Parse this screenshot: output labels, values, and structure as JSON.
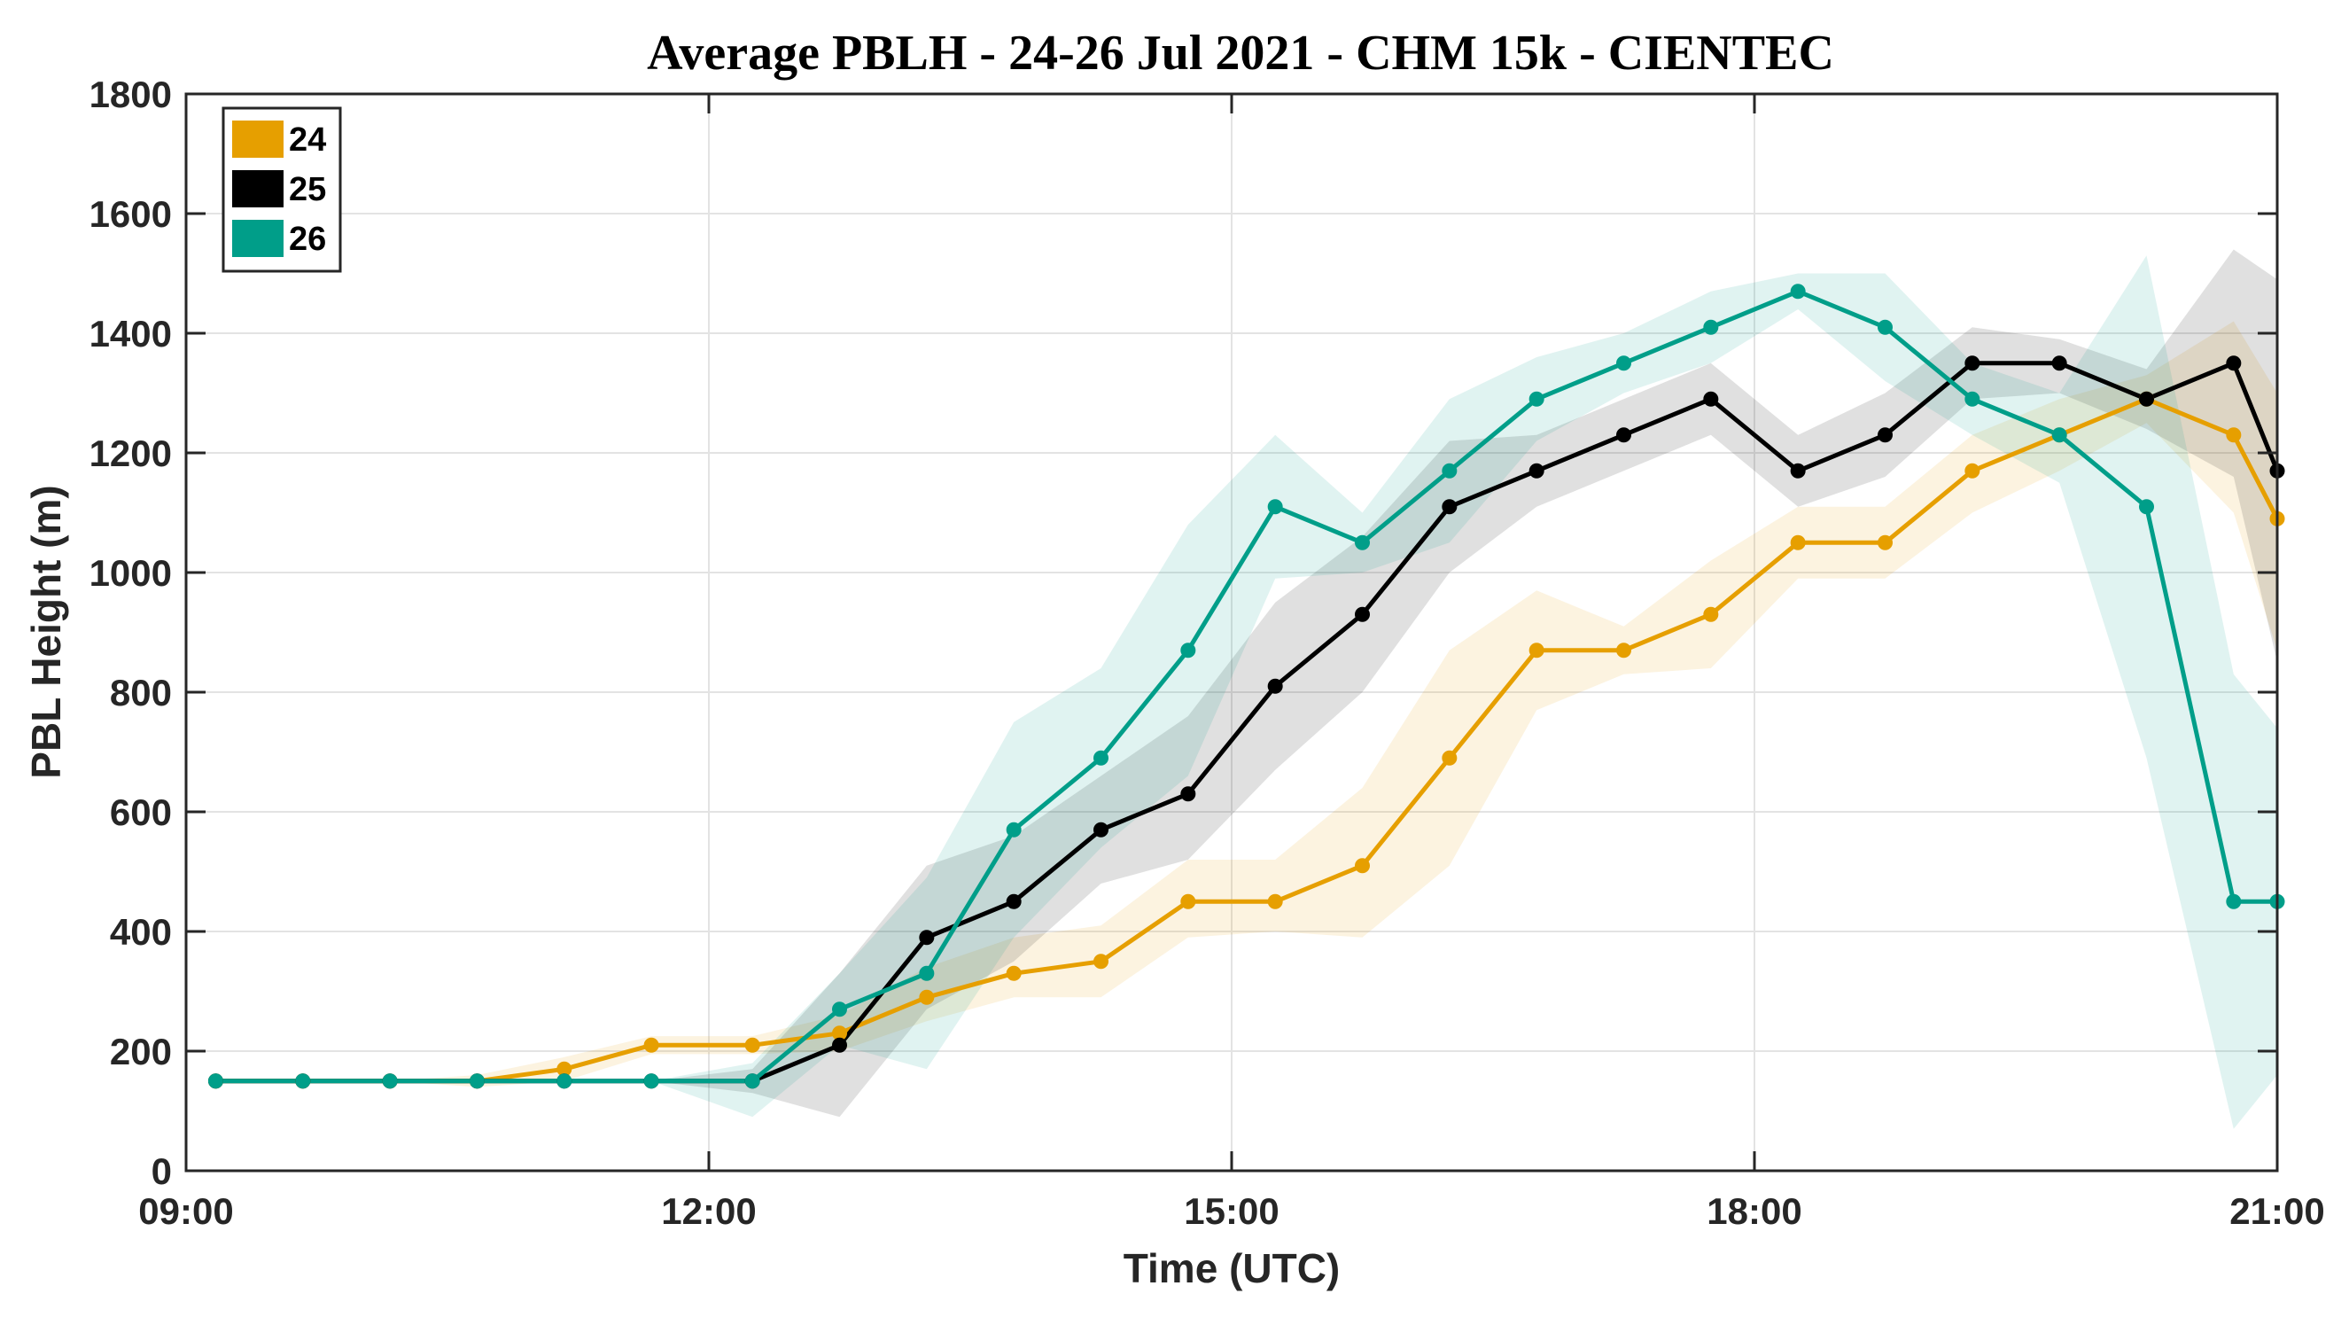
{
  "chart_data": {
    "type": "line",
    "title": "Average PBLH - 24-26 Jul 2021 - CHM 15k - CIENTEC",
    "xlabel": "Time (UTC)",
    "ylabel": "PBL Height (m)",
    "xlim": [
      9,
      21
    ],
    "ylim": [
      0,
      1800
    ],
    "xticks": [
      9,
      12,
      15,
      18,
      21
    ],
    "xtick_labels": [
      "09:00",
      "12:00",
      "15:00",
      "18:00",
      "21:00"
    ],
    "yticks": [
      0,
      200,
      400,
      600,
      800,
      1000,
      1200,
      1400,
      1600,
      1800
    ],
    "ytick_labels": [
      "0",
      "200",
      "400",
      "600",
      "800",
      "1000",
      "1200",
      "1400",
      "1600",
      "1800"
    ],
    "grid": true,
    "legend_position": "top-left",
    "x": [
      9.17,
      9.67,
      10.17,
      10.67,
      11.17,
      11.67,
      12.25,
      12.75,
      13.25,
      13.75,
      14.25,
      14.75,
      15.25,
      15.75,
      16.25,
      16.75,
      17.25,
      17.75,
      18.25,
      18.75,
      19.25,
      19.75,
      20.25,
      20.75,
      21.0
    ],
    "series": [
      {
        "name": "24",
        "color": "#E69F00",
        "values": [
          150,
          150,
          150,
          150,
          170,
          210,
          210,
          230,
          290,
          330,
          350,
          450,
          450,
          510,
          690,
          870,
          870,
          930,
          1050,
          1050,
          1170,
          1230,
          1290,
          1230,
          1090
        ],
        "upper": [
          150,
          150,
          150,
          160,
          190,
          225,
          225,
          260,
          340,
          390,
          410,
          520,
          520,
          640,
          870,
          970,
          910,
          1020,
          1110,
          1110,
          1230,
          1290,
          1330,
          1420,
          1300
        ],
        "lower": [
          150,
          150,
          150,
          140,
          150,
          195,
          195,
          200,
          250,
          290,
          290,
          390,
          400,
          390,
          510,
          770,
          830,
          840,
          990,
          990,
          1100,
          1170,
          1250,
          1100,
          870
        ]
      },
      {
        "name": "25",
        "color": "#000000",
        "values": [
          150,
          150,
          150,
          150,
          150,
          150,
          150,
          210,
          390,
          450,
          570,
          630,
          810,
          930,
          1110,
          1170,
          1230,
          1290,
          1170,
          1230,
          1350,
          1350,
          1290,
          1350,
          1170
        ],
        "upper": [
          150,
          150,
          150,
          150,
          150,
          150,
          170,
          330,
          510,
          560,
          660,
          760,
          950,
          1060,
          1220,
          1230,
          1290,
          1350,
          1230,
          1300,
          1410,
          1390,
          1340,
          1540,
          1490
        ],
        "lower": [
          150,
          150,
          150,
          150,
          150,
          150,
          130,
          90,
          270,
          350,
          480,
          520,
          670,
          800,
          1000,
          1110,
          1170,
          1230,
          1110,
          1160,
          1290,
          1300,
          1240,
          1160,
          850
        ]
      },
      {
        "name": "26",
        "color": "#009E89",
        "values": [
          150,
          150,
          150,
          150,
          150,
          150,
          150,
          270,
          330,
          570,
          690,
          870,
          1110,
          1050,
          1170,
          1290,
          1350,
          1410,
          1470,
          1410,
          1290,
          1230,
          1110,
          450,
          450
        ],
        "upper": [
          150,
          150,
          150,
          150,
          150,
          150,
          180,
          330,
          490,
          750,
          840,
          1080,
          1230,
          1100,
          1290,
          1360,
          1400,
          1470,
          1500,
          1500,
          1350,
          1300,
          1530,
          830,
          740
        ],
        "lower": [
          150,
          150,
          150,
          150,
          150,
          150,
          90,
          210,
          170,
          390,
          540,
          660,
          990,
          1000,
          1050,
          1220,
          1300,
          1350,
          1440,
          1320,
          1230,
          1150,
          690,
          70,
          160
        ]
      }
    ]
  }
}
